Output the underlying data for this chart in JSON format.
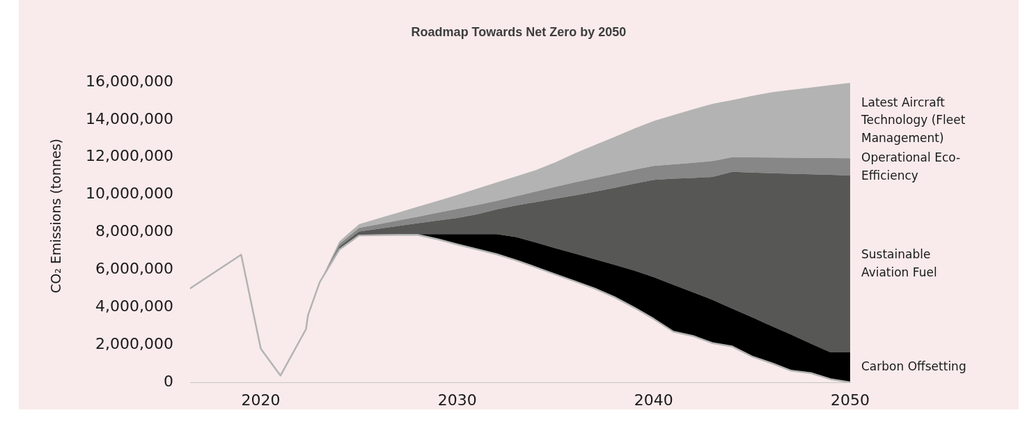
{
  "chart_data": {
    "type": "area",
    "title": "Roadmap Towards Net Zero by 2050",
    "ylabel": "CO₂ Emissions (tonnes)",
    "xlim": [
      2016.4,
      2050
    ],
    "xticks": [
      2020,
      2030,
      2040,
      2050
    ],
    "ylim": [
      0,
      16000000
    ],
    "yticks": [
      0,
      {
        "value": 2000000,
        "label": "2,000,000"
      },
      {
        "value": 4000000,
        "label": "4,000,000"
      },
      {
        "value": 6000000,
        "label": "6,000,000"
      },
      {
        "value": 8000000,
        "label": "8,000,000"
      },
      {
        "value": 10000000,
        "label": "10,000,000"
      },
      {
        "value": 12000000,
        "label": "12,000,000"
      },
      {
        "value": 14000000,
        "label": "14,000,000"
      },
      {
        "value": 16000000,
        "label": "16,000,000"
      }
    ],
    "x": [
      2016.4,
      2019,
      2020,
      2021,
      2022.3,
      2022.4,
      2023,
      2024,
      2025,
      2026,
      2027,
      2028,
      2029,
      2030,
      2031,
      2032,
      2033,
      2034,
      2035,
      2036,
      2037,
      2038,
      2039,
      2040,
      2041,
      2042,
      2043,
      2044,
      2045,
      2046,
      2047,
      2048,
      2049,
      2050
    ],
    "series": [
      {
        "type": "line",
        "color": "#b3b3b3",
        "values": [
          5000000,
          6800000,
          1790000,
          360000,
          2830000,
          3570000,
          5340000,
          7080000,
          7830000,
          7850000,
          7860000,
          7860000,
          7630000,
          7350000,
          7090000,
          6830000,
          6500000,
          6130000,
          5750000,
          5380000,
          5000000,
          4540000,
          3990000,
          3380000,
          2700000,
          2470000,
          2090000,
          1910000,
          1380000,
          1020000,
          620000,
          490000,
          170000,
          0
        ]
      },
      {
        "name": "Carbon Offsetting",
        "color": "#000000",
        "values": [
          null,
          null,
          null,
          null,
          null,
          null,
          5340000,
          7140000,
          7900000,
          7900000,
          7900000,
          7900000,
          7900000,
          7900000,
          7900000,
          7900000,
          7740000,
          7450000,
          7150000,
          6860000,
          6560000,
          6260000,
          5960000,
          5610000,
          5200000,
          4800000,
          4390000,
          3930000,
          3470000,
          3000000,
          2540000,
          2060000,
          1600000,
          1600000
        ]
      },
      {
        "name": "Sustainable Aviation Fuel",
        "color": "#575756",
        "values": [
          null,
          null,
          null,
          null,
          null,
          null,
          5340000,
          7240000,
          8040000,
          8190000,
          8330000,
          8480000,
          8620000,
          8760000,
          8960000,
          9220000,
          9430000,
          9610000,
          9790000,
          9970000,
          10160000,
          10370000,
          10590000,
          10790000,
          10860000,
          10900000,
          10950000,
          11220000,
          11180000,
          11150000,
          11120000,
          11090000,
          11060000,
          11030000
        ]
      },
      {
        "name": "Operational Eco-Efficiency",
        "color": "#878787",
        "values": [
          null,
          null,
          null,
          null,
          null,
          null,
          5340000,
          7380000,
          8230000,
          8430000,
          8630000,
          8830000,
          9040000,
          9240000,
          9450000,
          9670000,
          9920000,
          10170000,
          10420000,
          10660000,
          10890000,
          11110000,
          11330000,
          11540000,
          11620000,
          11700000,
          11800000,
          12000000,
          11990000,
          11980000,
          11970000,
          11960000,
          11950000,
          11940000
        ]
      },
      {
        "name": "Latest Aircraft Technology (Fleet Management)",
        "color": "#b3b3b3",
        "values": [
          null,
          null,
          null,
          null,
          null,
          null,
          5340000,
          7510000,
          8430000,
          8740000,
          9050000,
          9360000,
          9670000,
          9990000,
          10320000,
          10650000,
          10980000,
          11310000,
          11730000,
          12210000,
          12650000,
          13080000,
          13520000,
          13930000,
          14250000,
          14550000,
          14850000,
          15040000,
          15270000,
          15460000,
          15590000,
          15710000,
          15840000,
          15960000
        ]
      }
    ]
  }
}
